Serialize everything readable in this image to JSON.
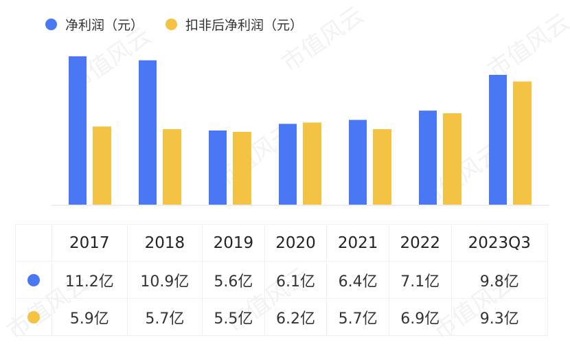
{
  "watermark": "市值风云",
  "chart_data": {
    "type": "bar",
    "title": "",
    "xlabel": "",
    "ylabel": "",
    "ylim": [
      0,
      11.2
    ],
    "grid": false,
    "legend_placement": "top-left",
    "categories": [
      "2017",
      "2018",
      "2019",
      "2020",
      "2021",
      "2022",
      "2023Q3"
    ],
    "series": [
      {
        "name": "净利润（元）",
        "color": "#4a78f5",
        "values": [
          11.2,
          10.9,
          5.6,
          6.1,
          6.4,
          7.1,
          9.8
        ],
        "labels": [
          "11.2亿",
          "10.9亿",
          "5.6亿",
          "6.1亿",
          "6.4亿",
          "7.1亿",
          "9.8亿"
        ]
      },
      {
        "name": "扣非后净利润（元）",
        "color": "#f5c344",
        "values": [
          5.9,
          5.7,
          5.5,
          6.2,
          5.7,
          6.9,
          9.3
        ],
        "labels": [
          "5.9亿",
          "5.7亿",
          "5.5亿",
          "6.2亿",
          "5.7亿",
          "6.9亿",
          "9.3亿"
        ]
      }
    ]
  }
}
